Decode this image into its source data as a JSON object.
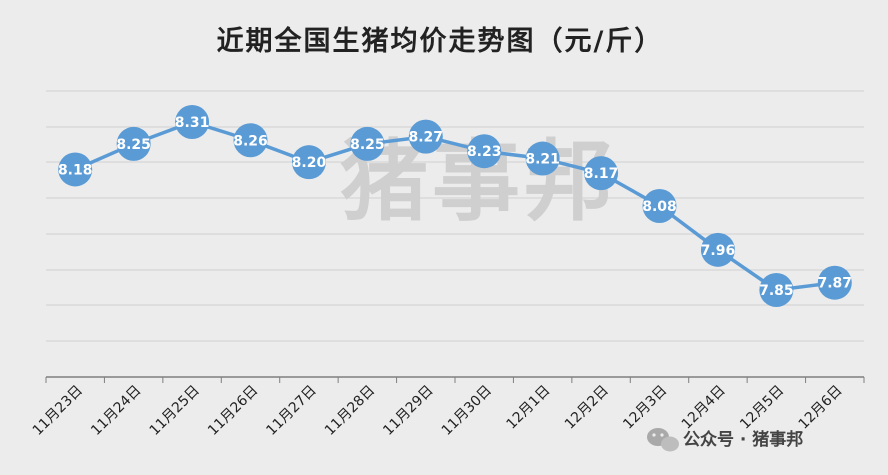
{
  "chart_data": {
    "type": "line",
    "title": "近期全国生猪均价走势图（元/斤）",
    "categories": [
      "11月23日",
      "11月24日",
      "11月25日",
      "11月26日",
      "11月27日",
      "11月28日",
      "11月29日",
      "11月30日",
      "12月1日",
      "12月2日",
      "12月3日",
      "12月4日",
      "12月5日",
      "12月6日"
    ],
    "series": [
      {
        "values": [
          8.18,
          8.25,
          8.31,
          8.26,
          8.2,
          8.25,
          8.27,
          8.23,
          8.21,
          8.17,
          8.08,
          7.96,
          7.85,
          7.87
        ]
      }
    ],
    "data_labels": [
      "8.18",
      "8.25",
      "8.31",
      "8.26",
      "8.20",
      "8.25",
      "8.27",
      "8.23",
      "8.21",
      "8.17",
      "8.08",
      "7.96",
      "7.85",
      "7.87"
    ],
    "grid": true,
    "line_color": "#5b9bd5"
  },
  "watermark": "猪事邦",
  "footer": {
    "source": "公众号 · 猪事邦",
    "icon": "wechat-icon"
  },
  "colors": {
    "background": "#ececec",
    "series": "#5b9bd5",
    "grid": "#d0d0d0",
    "axis": "#7f7f7f",
    "watermark": "#cfcfcf"
  }
}
